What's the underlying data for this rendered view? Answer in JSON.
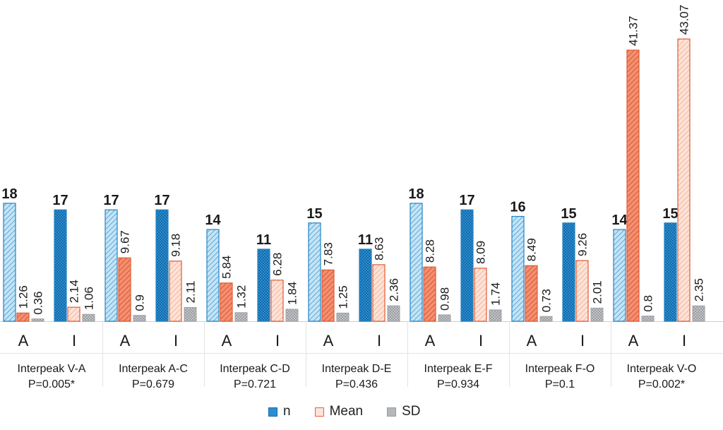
{
  "chart_data": {
    "type": "bar",
    "title": "",
    "xlabel": "",
    "ylabel": "",
    "ylim": [
      0,
      46
    ],
    "grid": false,
    "legend_position": "bottom",
    "series": [
      {
        "name": "n",
        "color": "#1d86c8"
      },
      {
        "name": "Mean",
        "color": "#e8603c"
      },
      {
        "name": "SD",
        "color": "#a9acb0"
      }
    ],
    "groups": [
      {
        "label": "Interpeak V-A",
        "p_value": "P=0.005*",
        "bars": [
          {
            "category": "A",
            "n": 18,
            "mean": 1.26,
            "sd": 0.36,
            "n_label": "18",
            "mean_label": "1.26",
            "sd_label": "0.36"
          },
          {
            "category": "I",
            "n": 17,
            "mean": 2.14,
            "sd": 1.06,
            "n_label": "17",
            "mean_label": "2.14",
            "sd_label": "1.06"
          }
        ]
      },
      {
        "label": "Interpeak A-C",
        "p_value": "P=0.679",
        "bars": [
          {
            "category": "A",
            "n": 17,
            "mean": 9.67,
            "sd": 0.9,
            "n_label": "17",
            "mean_label": "9.67",
            "sd_label": "0.9"
          },
          {
            "category": "I",
            "n": 17,
            "mean": 9.18,
            "sd": 2.11,
            "n_label": "17",
            "mean_label": "9.18",
            "sd_label": "2.11"
          }
        ]
      },
      {
        "label": "Interpeak C-D",
        "p_value": "P=0.721",
        "bars": [
          {
            "category": "A",
            "n": 14,
            "mean": 5.84,
            "sd": 1.32,
            "n_label": "14",
            "mean_label": "5.84",
            "sd_label": "1.32"
          },
          {
            "category": "I",
            "n": 11,
            "mean": 6.28,
            "sd": 1.84,
            "n_label": "11",
            "mean_label": "6.28",
            "sd_label": "1.84"
          }
        ]
      },
      {
        "label": "Interpeak D-E",
        "p_value": "P=0.436",
        "bars": [
          {
            "category": "A",
            "n": 15,
            "mean": 7.83,
            "sd": 1.25,
            "n_label": "15",
            "mean_label": "7.83",
            "sd_label": "1.25"
          },
          {
            "category": "I",
            "n": 11,
            "mean": 8.63,
            "sd": 2.36,
            "n_label": "11",
            "mean_label": "8.63",
            "sd_label": "2.36"
          }
        ]
      },
      {
        "label": "Interpeak E-F",
        "p_value": "P=0.934",
        "bars": [
          {
            "category": "A",
            "n": 18,
            "mean": 8.28,
            "sd": 0.98,
            "n_label": "18",
            "mean_label": "8.28",
            "sd_label": "0.98"
          },
          {
            "category": "I",
            "n": 17,
            "mean": 8.09,
            "sd": 1.74,
            "n_label": "17",
            "mean_label": "8.09",
            "sd_label": "1.74"
          }
        ]
      },
      {
        "label": "Interpeak F-O",
        "p_value": "P=0.1",
        "bars": [
          {
            "category": "A",
            "n": 16,
            "mean": 8.49,
            "sd": 0.73,
            "n_label": "16",
            "mean_label": "8.49",
            "sd_label": "0.73"
          },
          {
            "category": "I",
            "n": 15,
            "mean": 9.26,
            "sd": 2.01,
            "n_label": "15",
            "mean_label": "9.26",
            "sd_label": "2.01"
          }
        ]
      },
      {
        "label": "Interpeak V-O",
        "p_value": "P=0.002*",
        "bars": [
          {
            "category": "A",
            "n": 14,
            "mean": 41.37,
            "sd": 0.8,
            "n_label": "14",
            "mean_label": "41.37",
            "sd_label": "0.8"
          },
          {
            "category": "I",
            "n": 15,
            "mean": 43.07,
            "sd": 2.35,
            "n_label": "15",
            "mean_label": "43.07",
            "sd_label": "2.35"
          }
        ]
      }
    ]
  }
}
